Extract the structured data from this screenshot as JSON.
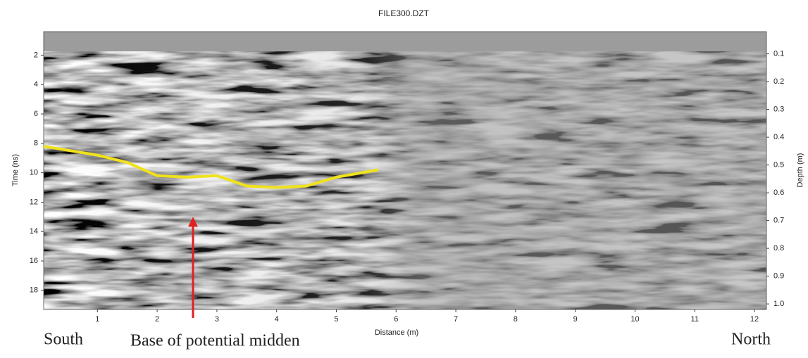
{
  "chart_data": {
    "type": "radargram",
    "title": "FILE300.DZT",
    "x_label": "Distance (m)",
    "y_label": "Time (ns)",
    "y2_label": "Depth (m)",
    "xlim": [
      0.1,
      12.2
    ],
    "xticks": [
      1,
      2,
      3,
      4,
      5,
      6,
      7,
      8,
      9,
      10,
      11,
      12
    ],
    "ylim": [
      0.4,
      19.3
    ],
    "yticks": [
      2,
      4,
      6,
      8,
      10,
      12,
      14,
      16,
      18
    ],
    "y2lim": [
      0.02,
      1.02
    ],
    "y2ticks": [
      0.1,
      0.2,
      0.3,
      0.4,
      0.5,
      0.6,
      0.7,
      0.8,
      0.9,
      {
        "value": 1,
        "label": "1.0"
      }
    ],
    "series": [
      {
        "color": "#f0e21c",
        "x": [
          0.1,
          1,
          1.5,
          2,
          2.5,
          3,
          3.5,
          4,
          4.5,
          5,
          5.7
        ],
        "values": [
          8.2,
          8.8,
          9.3,
          10.2,
          10.3,
          10.2,
          10.9,
          11.0,
          10.9,
          10.3,
          9.8
        ]
      }
    ],
    "annotations": {
      "left": "South",
      "right": "North",
      "arrow": {
        "text": "Base of potential midden",
        "x": 2.6,
        "y": 13,
        "color": "#e02020"
      }
    }
  }
}
